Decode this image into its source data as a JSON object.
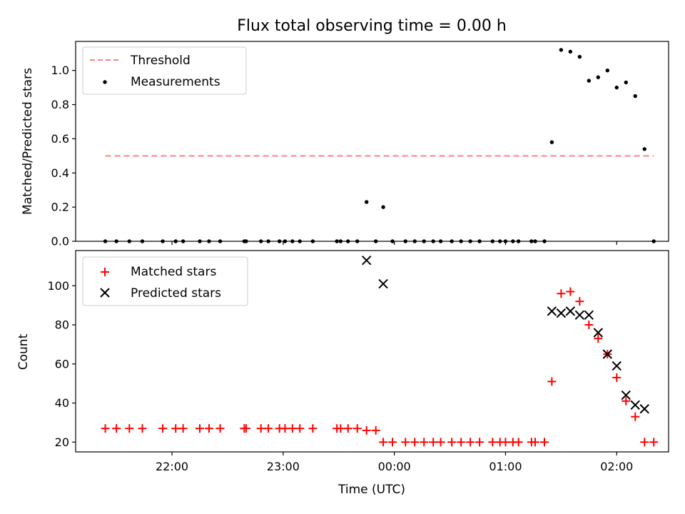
{
  "chart_data": [
    {
      "type": "scatter",
      "title": "Flux total observing time = 0.00 h",
      "ylabel": "Matched/Predicted stars",
      "ylim": [
        0,
        1.17
      ],
      "yticks": [
        "0.0",
        "0.2",
        "0.4",
        "0.6",
        "0.8",
        "1.0"
      ],
      "grid": false,
      "legend_placement": "upper-left",
      "series": [
        {
          "name": "Threshold",
          "style": "dashed-line",
          "color": "#ff7f7f",
          "points": [
            [
              "21:24",
              0.5
            ],
            [
              "02:20",
              0.5
            ]
          ]
        },
        {
          "name": "Measurements",
          "style": "dot",
          "color": "#000000",
          "points": [
            [
              "21:24",
              0
            ],
            [
              "21:30",
              0
            ],
            [
              "21:37",
              0
            ],
            [
              "21:44",
              0
            ],
            [
              "21:55",
              0
            ],
            [
              "22:02",
              0
            ],
            [
              "22:06",
              0
            ],
            [
              "22:15",
              0
            ],
            [
              "22:20",
              0
            ],
            [
              "22:26",
              0
            ],
            [
              "22:39",
              0
            ],
            [
              "22:40",
              0
            ],
            [
              "22:48",
              0
            ],
            [
              "22:52",
              0
            ],
            [
              "22:58",
              0
            ],
            [
              "23:01",
              0
            ],
            [
              "23:05",
              0
            ],
            [
              "23:09",
              0
            ],
            [
              "23:16",
              0
            ],
            [
              "23:29",
              0
            ],
            [
              "23:31",
              0
            ],
            [
              "23:35",
              0
            ],
            [
              "23:40",
              0
            ],
            [
              "23:45",
              0.23
            ],
            [
              "23:50",
              0
            ],
            [
              "23:54",
              0.2
            ],
            [
              "23:59",
              0
            ],
            [
              "00:06",
              0
            ],
            [
              "00:11",
              0
            ],
            [
              "00:16",
              0
            ],
            [
              "00:21",
              0
            ],
            [
              "00:25",
              0
            ],
            [
              "00:31",
              0
            ],
            [
              "00:36",
              0
            ],
            [
              "00:41",
              0
            ],
            [
              "00:46",
              0
            ],
            [
              "00:53",
              0
            ],
            [
              "00:57",
              0
            ],
            [
              "01:00",
              0
            ],
            [
              "01:04",
              0
            ],
            [
              "01:07",
              0
            ],
            [
              "01:14",
              0
            ],
            [
              "01:16",
              0
            ],
            [
              "01:21",
              0
            ],
            [
              "01:25",
              0.58
            ],
            [
              "01:30",
              1.12
            ],
            [
              "01:35",
              1.11
            ],
            [
              "01:40",
              1.08
            ],
            [
              "01:45",
              0.94
            ],
            [
              "01:50",
              0.96
            ],
            [
              "01:55",
              1.0
            ],
            [
              "02:00",
              0.9
            ],
            [
              "02:05",
              0.93
            ],
            [
              "02:10",
              0.85
            ],
            [
              "02:15",
              0.54
            ],
            [
              "02:20",
              0
            ]
          ]
        }
      ]
    },
    {
      "type": "scatter",
      "xlabel": "Time (UTC)",
      "ylabel": "Count",
      "ylim": [
        15,
        118
      ],
      "yticks": [
        "20",
        "40",
        "60",
        "80",
        "100"
      ],
      "xticks": [
        "22:00",
        "23:00",
        "00:00",
        "01:00",
        "02:00"
      ],
      "grid": false,
      "legend_placement": "upper-left",
      "series": [
        {
          "name": "Matched stars",
          "style": "plus",
          "color": "#ff0000",
          "points": [
            [
              "21:24",
              27
            ],
            [
              "21:30",
              27
            ],
            [
              "21:37",
              27
            ],
            [
              "21:44",
              27
            ],
            [
              "21:55",
              27
            ],
            [
              "22:02",
              27
            ],
            [
              "22:06",
              27
            ],
            [
              "22:15",
              27
            ],
            [
              "22:20",
              27
            ],
            [
              "22:26",
              27
            ],
            [
              "22:39",
              27
            ],
            [
              "22:40",
              27
            ],
            [
              "22:48",
              27
            ],
            [
              "22:52",
              27
            ],
            [
              "22:58",
              27
            ],
            [
              "23:01",
              27
            ],
            [
              "23:05",
              27
            ],
            [
              "23:09",
              27
            ],
            [
              "23:16",
              27
            ],
            [
              "23:29",
              27
            ],
            [
              "23:31",
              27
            ],
            [
              "23:35",
              27
            ],
            [
              "23:40",
              27
            ],
            [
              "23:45",
              26
            ],
            [
              "23:50",
              26
            ],
            [
              "23:54",
              20
            ],
            [
              "23:59",
              20
            ],
            [
              "00:06",
              20
            ],
            [
              "00:11",
              20
            ],
            [
              "00:16",
              20
            ],
            [
              "00:21",
              20
            ],
            [
              "00:25",
              20
            ],
            [
              "00:31",
              20
            ],
            [
              "00:36",
              20
            ],
            [
              "00:41",
              20
            ],
            [
              "00:46",
              20
            ],
            [
              "00:53",
              20
            ],
            [
              "00:57",
              20
            ],
            [
              "01:00",
              20
            ],
            [
              "01:04",
              20
            ],
            [
              "01:07",
              20
            ],
            [
              "01:14",
              20
            ],
            [
              "01:16",
              20
            ],
            [
              "01:21",
              20
            ],
            [
              "01:25",
              51
            ],
            [
              "01:30",
              96
            ],
            [
              "01:35",
              97
            ],
            [
              "01:40",
              92
            ],
            [
              "01:45",
              80
            ],
            [
              "01:50",
              73
            ],
            [
              "01:55",
              65
            ],
            [
              "02:00",
              53
            ],
            [
              "02:05",
              41
            ],
            [
              "02:10",
              33
            ],
            [
              "02:15",
              20
            ],
            [
              "02:20",
              20
            ]
          ]
        },
        {
          "name": "Predicted stars",
          "style": "x",
          "color": "#000000",
          "points": [
            [
              "23:45",
              113
            ],
            [
              "23:54",
              101
            ],
            [
              "01:25",
              87
            ],
            [
              "01:30",
              86
            ],
            [
              "01:35",
              87
            ],
            [
              "01:40",
              85
            ],
            [
              "01:45",
              85
            ],
            [
              "01:50",
              76
            ],
            [
              "01:55",
              65
            ],
            [
              "02:00",
              59
            ],
            [
              "02:05",
              44
            ],
            [
              "02:10",
              39
            ],
            [
              "02:15",
              37
            ]
          ]
        }
      ]
    }
  ]
}
